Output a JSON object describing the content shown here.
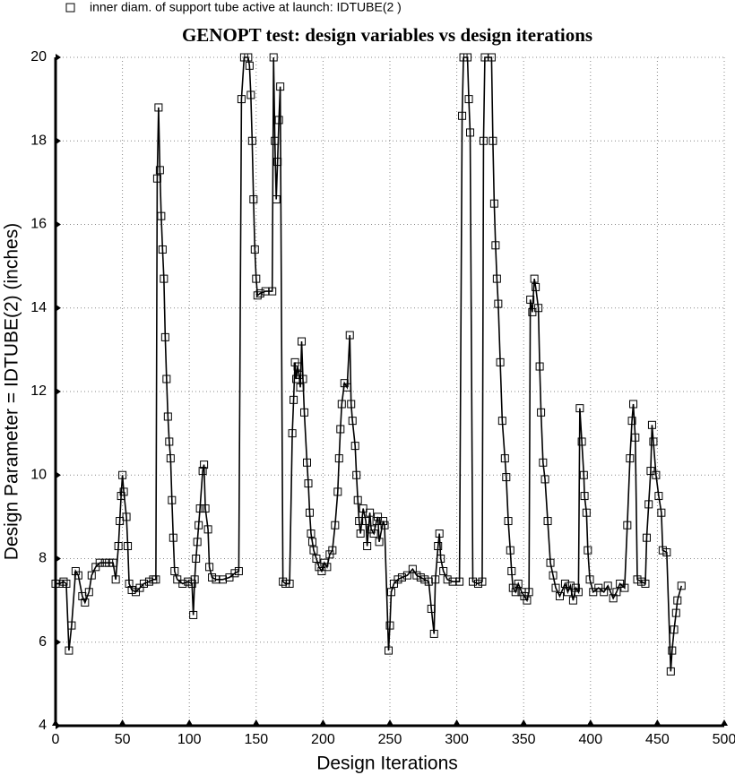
{
  "chart_data": {
    "type": "line",
    "title": "GENOPT test: design variables vs design iterations",
    "x_label": "Design Iterations",
    "y_label": "Design Parameter = IDTUBE(2) (inches)",
    "xlim": [
      0,
      500
    ],
    "xticks": [
      0,
      50,
      100,
      150,
      200,
      250,
      300,
      350,
      400,
      450,
      500
    ],
    "ylim": [
      4,
      20
    ],
    "yticks": [
      4,
      6,
      8,
      10,
      12,
      14,
      16,
      18,
      20
    ],
    "grid": true,
    "legend": "top-left",
    "x": [
      0,
      3,
      6,
      8,
      10,
      12,
      15,
      17,
      20,
      22,
      25,
      27,
      30,
      33,
      37,
      40,
      43,
      45,
      47,
      48,
      49,
      50,
      51,
      53,
      54,
      55,
      57,
      60,
      63,
      66,
      70,
      73,
      75,
      76,
      77,
      78,
      79,
      80,
      81,
      82,
      83,
      84,
      85,
      86,
      87,
      88,
      89,
      91,
      95,
      99,
      102,
      103,
      104,
      105,
      106,
      107,
      108,
      110,
      111,
      112,
      114,
      115,
      117,
      120,
      125,
      130,
      134,
      137,
      139,
      141,
      144,
      145,
      146,
      147,
      148,
      149,
      150,
      151,
      153,
      157,
      162,
      163,
      164,
      165,
      166,
      167,
      168,
      170,
      172,
      175,
      177,
      178,
      179,
      180,
      181,
      182,
      183,
      184,
      185,
      186,
      188,
      189,
      190,
      191,
      192,
      193,
      195,
      197,
      199,
      201,
      203,
      205,
      207,
      209,
      211,
      212,
      213,
      214,
      216,
      218,
      220,
      221,
      222,
      224,
      225,
      226,
      227,
      228,
      230,
      232,
      233,
      235,
      236,
      238,
      240,
      241,
      242,
      245,
      246,
      249,
      250,
      251,
      253,
      256,
      259,
      263,
      267,
      270,
      273,
      276,
      279,
      281,
      283,
      284,
      286,
      287,
      288,
      290,
      293,
      297,
      302,
      304,
      305,
      308,
      309,
      310,
      312,
      316,
      319,
      320,
      321,
      326,
      327,
      328,
      329,
      330,
      331,
      332.5,
      334,
      336,
      337,
      338.5,
      340,
      341,
      342,
      344,
      346,
      348.5,
      350.5,
      352.5,
      354,
      355,
      356.5,
      358,
      359,
      361,
      362,
      363,
      364.5,
      366,
      368,
      370,
      372,
      374,
      377,
      381,
      383,
      385,
      387,
      389,
      391,
      392,
      393.5,
      395,
      395.5,
      397,
      398,
      399.5,
      402,
      406,
      410,
      413,
      417,
      419.5,
      422,
      425.5,
      427.5,
      429.5,
      431,
      432,
      433.5,
      435,
      438,
      441,
      442,
      443.5,
      445,
      446,
      447,
      449,
      451,
      453,
      454,
      457,
      460,
      461,
      462.5,
      464,
      465,
      468
    ],
    "series": [
      {
        "name": "inner diam. of support tube active at launch: IDTUBE(2 )",
        "color": "#000000",
        "values": [
          7.4,
          7.4,
          7.45,
          7.4,
          5.8,
          6.4,
          7.7,
          7.6,
          7.1,
          6.95,
          7.2,
          7.6,
          7.8,
          7.9,
          7.9,
          7.9,
          7.9,
          7.5,
          8.3,
          8.9,
          9.5,
          10.0,
          9.6,
          9.0,
          8.3,
          7.4,
          7.25,
          7.2,
          7.3,
          7.4,
          7.45,
          7.5,
          7.5,
          17.1,
          18.8,
          17.3,
          16.2,
          15.4,
          14.7,
          13.3,
          12.3,
          11.4,
          10.8,
          10.4,
          9.4,
          8.5,
          7.7,
          7.5,
          7.4,
          7.45,
          7.4,
          6.65,
          7.5,
          8.0,
          8.4,
          8.8,
          9.2,
          10.1,
          10.25,
          9.2,
          8.7,
          7.8,
          7.55,
          7.5,
          7.5,
          7.55,
          7.65,
          7.7,
          19.0,
          20,
          20,
          19.8,
          19.1,
          18.0,
          16.6,
          15.4,
          14.7,
          14.3,
          14.35,
          14.4,
          14.4,
          20.0,
          18.0,
          16.6,
          17.5,
          18.5,
          19.3,
          7.45,
          7.4,
          7.4,
          11.0,
          11.8,
          12.7,
          12.3,
          12.6,
          12.4,
          12.1,
          13.2,
          12.3,
          11.5,
          10.3,
          9.8,
          9.1,
          8.6,
          8.4,
          8.2,
          8.0,
          7.8,
          7.7,
          7.9,
          7.8,
          8.1,
          8.2,
          8.8,
          9.6,
          10.4,
          11.1,
          11.7,
          12.2,
          12.1,
          13.35,
          11.7,
          11.3,
          10.7,
          10.0,
          9.4,
          8.9,
          8.6,
          9.2,
          8.9,
          8.3,
          9.1,
          8.7,
          8.6,
          8.9,
          9.0,
          8.4,
          8.9,
          8.8,
          5.8,
          6.4,
          7.2,
          7.4,
          7.5,
          7.55,
          7.6,
          7.75,
          7.6,
          7.55,
          7.5,
          7.45,
          6.8,
          6.2,
          7.5,
          8.3,
          8.6,
          8.0,
          7.7,
          7.5,
          7.45,
          7.45,
          18.6,
          20,
          20,
          19.0,
          18.2,
          7.45,
          7.4,
          7.45,
          18.0,
          20,
          20,
          18.0,
          16.5,
          15.5,
          14.7,
          14.1,
          12.7,
          11.3,
          10.4,
          9.95,
          8.9,
          8.2,
          7.7,
          7.3,
          7.2,
          7.4,
          7.2,
          7.1,
          7.0,
          7.2,
          14.2,
          13.9,
          14.7,
          14.5,
          14.0,
          12.6,
          11.5,
          10.3,
          9.9,
          8.9,
          7.9,
          7.6,
          7.3,
          7.1,
          7.4,
          7.2,
          7.35,
          7.0,
          7.3,
          7.2,
          11.6,
          10.8,
          10.0,
          9.5,
          9.1,
          8.2,
          7.5,
          7.2,
          7.3,
          7.2,
          7.35,
          7.05,
          7.2,
          7.4,
          7.3,
          8.8,
          10.4,
          11.3,
          11.7,
          10.9,
          7.5,
          7.45,
          7.4,
          8.5,
          9.3,
          10.1,
          11.2,
          10.8,
          10.0,
          9.5,
          9.1,
          8.2,
          8.15,
          5.3,
          5.8,
          6.3,
          6.7,
          7.0,
          7.35
        ]
      }
    ]
  }
}
